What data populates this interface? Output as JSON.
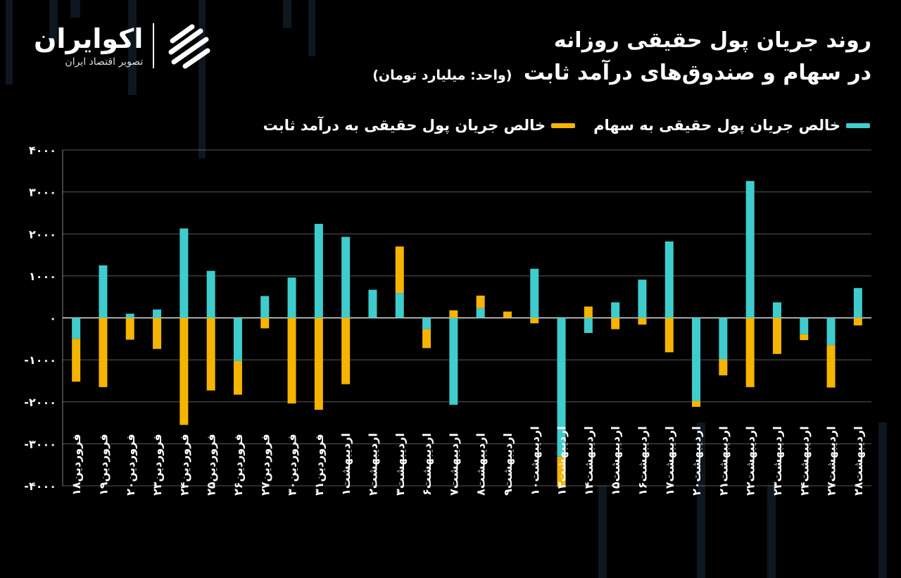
{
  "logo": {
    "name": "اکوایران",
    "tagline": "تصویر اقتصاد ایران",
    "icon": "ecoiran-logo-icon"
  },
  "title": {
    "line1": "روند جریان پول حقیقی روزانه",
    "line2": "در سهام و صندوق‌های درآمد ثابت",
    "unit": "(واحد: میلیارد تومان)"
  },
  "legend": [
    {
      "label": "خالص جریان پول حقیقی به سهام",
      "color": "#3fcccd"
    },
    {
      "label": "خالص جریان پول حقیقی به درآمد ثابت",
      "color": "#f5b400"
    }
  ],
  "colors": {
    "stocks": "#3fcccd",
    "fixed_income": "#f5b400",
    "grid": "#ffffff",
    "background": "#000000"
  },
  "chart_data": {
    "type": "bar",
    "stacked": true,
    "ylim": [
      -4000,
      4000
    ],
    "yticks": [
      4000,
      3000,
      2000,
      1000,
      0,
      -1000,
      -2000,
      -3000,
      -4000
    ],
    "ytick_labels": [
      "۴۰۰۰",
      "۳۰۰۰",
      "۲۰۰۰",
      "۱۰۰۰",
      "۰",
      "-۱۰۰۰",
      "-۲۰۰۰",
      "-۳۰۰۰",
      "-۴۰۰۰"
    ],
    "grid": true,
    "legend_position": "top",
    "categories": [
      "فروردین۱۸",
      "فروردین۱۹",
      "فروردین۲۰",
      "فروردین۲۳",
      "فروردین۲۴",
      "فروردین۲۵",
      "فروردین۲۶",
      "فروردین۲۷",
      "فروردین۳۰",
      "فروردین۳۱",
      "اردیبهشت۱",
      "اردیبهشت۲",
      "اردیبهشت۳",
      "اردیبهشت۶",
      "اردیبهشت۷",
      "اردیبهشت۸",
      "اردیبهشت۹",
      "اردیبهشت۱۰",
      "اردیبهشت۱۳",
      "اردیبهشت۱۴",
      "اردیبهشت۱۵",
      "اردیبهشت۱۶",
      "اردیبهشت۱۷",
      "اردیبهشت۲۰",
      "اردیبهشت۲۱",
      "اردیبهشت۲۲",
      "اردیبهشت۲۳",
      "اردیبهشت۲۴",
      "اردیبهشت۲۷",
      "اردیبهشت۲۸"
    ],
    "series": [
      {
        "name": "خالص جریان پول حقیقی به سهام",
        "values": [
          -500,
          1250,
          100,
          200,
          2130,
          1120,
          -1030,
          520,
          960,
          2240,
          1930,
          670,
          590,
          -270,
          -2070,
          230,
          0,
          1170,
          -3310,
          -360,
          370,
          910,
          1820,
          -1980,
          -990,
          3260,
          370,
          -390,
          -650,
          710
        ]
      },
      {
        "name": "خالص جریان پول حقیقی به درآمد ثابت",
        "values": [
          -1020,
          -1650,
          -520,
          -740,
          -2550,
          -1730,
          -800,
          -250,
          -2040,
          -2190,
          -1580,
          0,
          1110,
          -450,
          180,
          300,
          150,
          -130,
          -720,
          270,
          -270,
          -160,
          -820,
          -140,
          -380,
          -1650,
          -860,
          -140,
          -1010,
          -180
        ]
      }
    ]
  }
}
